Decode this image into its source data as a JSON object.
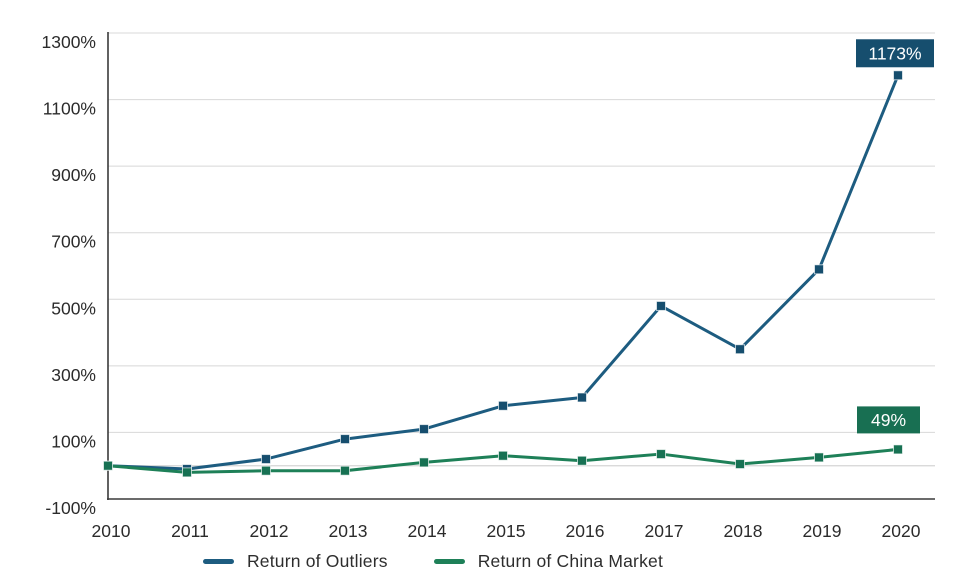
{
  "chart_data": {
    "type": "line",
    "title": "",
    "xlabel": "",
    "ylabel": "",
    "x": [
      "2010",
      "2011",
      "2012",
      "2013",
      "2014",
      "2015",
      "2016",
      "2017",
      "2018",
      "2019",
      "2020"
    ],
    "series": [
      {
        "name": "Return of Outliers",
        "line_color": "#1d5c80",
        "marker_color": "#164e6e",
        "label_bg": "#164e6e",
        "values": [
          0,
          -10,
          20,
          80,
          110,
          180,
          205,
          480,
          350,
          590,
          1173
        ],
        "end_label": "1173%"
      },
      {
        "name": "Return of China Market",
        "line_color": "#1e8058",
        "marker_color": "#177153",
        "label_bg": "#186f52",
        "values": [
          0,
          -20,
          -15,
          -15,
          10,
          30,
          15,
          35,
          5,
          25,
          49
        ],
        "end_label": "49%"
      }
    ],
    "ylim": [
      -100,
      1300
    ],
    "y_ticks": [
      -100,
      100,
      300,
      500,
      700,
      900,
      1100,
      1300
    ],
    "y_tick_suffix": "%",
    "grid": "horizontal",
    "zero_line": true,
    "legend_position": "bottom-center",
    "colors": {
      "gridline": "#d8d8d8",
      "zero_line": "#d4d4d4",
      "axis_line": "#3a3a3a",
      "tick_text": "#2b2b2b",
      "label_text": "#ffffff",
      "background": "#ffffff"
    }
  }
}
